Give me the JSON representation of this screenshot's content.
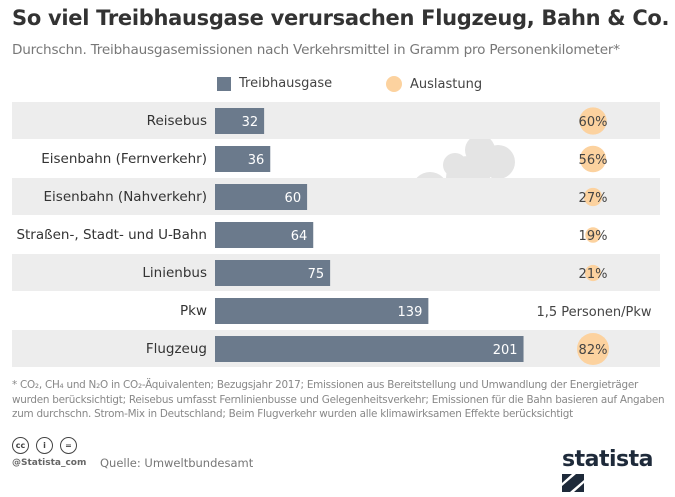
{
  "title": "So viel Treibhausgase verursachen Flugzeug, Bahn & Co.",
  "subtitle": "Durchschn. Treibhausgasemissionen nach Verkehrsmittel in Gramm pro Personenkilometer*",
  "colors": {
    "bar": "#6b7a8c",
    "circle": "#fcd29f",
    "stripe": "#ededed"
  },
  "chart_data": {
    "type": "bar",
    "orientation": "horizontal",
    "categories": [
      "Reisebus",
      "Eisenbahn (Fernverkehr)",
      "Eisenbahn (Nahverkehr)",
      "Straßen-, Stadt- und U-Bahn",
      "Linienbus",
      "Pkw",
      "Flugzeug"
    ],
    "series": [
      {
        "name": "Treibhausgase",
        "values": [
          32,
          36,
          60,
          64,
          75,
          139,
          201
        ]
      },
      {
        "name": "Auslastung",
        "values": [
          60,
          56,
          27,
          19,
          21,
          null,
          82
        ],
        "labels": [
          "60%",
          "56%",
          "27%",
          "19%",
          "21%",
          "1,5 Personen/Pkw",
          "82%"
        ]
      }
    ],
    "legend": "top"
  },
  "footnote": "* CO₂, CH₄ und N₂O in CO₂-Äquivalenten; Bezugsjahr 2017; Emissionen aus Bereitstellung und Umwandlung der Energieträger wurden berücksichtigt; Reisebus umfasst Fernlinienbusse und Gelegenheitsverkehr; Emissionen für die Bahn basieren auf Angaben zum durchschn. Strom-Mix in Deutschland; Beim Flugverkehr wurden alle klimawirksamen Effekte berücksichtigt",
  "footer": {
    "handle": "@Statista_com",
    "source": "Quelle: Umweltbundesamt",
    "brand": "statista",
    "cc_icons": [
      "cc",
      "by",
      "nd"
    ]
  }
}
